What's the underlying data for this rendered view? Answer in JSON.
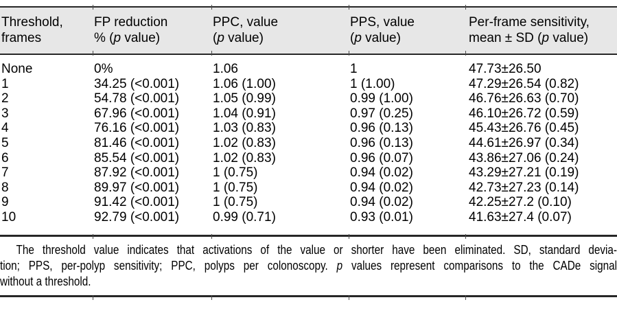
{
  "table": {
    "headers": [
      {
        "line1": "Threshold,",
        "line2_pre": "frames",
        "line2_italic": "",
        "line2_post": ""
      },
      {
        "line1": "FP reduction",
        "line2_pre": "% (",
        "line2_italic": "p",
        "line2_post": " value)"
      },
      {
        "line1": "PPC, value",
        "line2_pre": "(",
        "line2_italic": "p",
        "line2_post": " value)"
      },
      {
        "line1": "PPS, value",
        "line2_pre": "(",
        "line2_italic": "p",
        "line2_post": " value)"
      },
      {
        "line1": "Per-frame sensitivity,",
        "line2_pre": "mean ± SD (",
        "line2_italic": "p",
        "line2_post": " value)"
      }
    ],
    "rows": [
      [
        "None",
        "0%",
        "1.06",
        "1",
        "47.73±26.50"
      ],
      [
        "1",
        "34.25 (<0.001)",
        "1.06 (1.00)",
        "1 (1.00)",
        "47.29±26.54 (0.82)"
      ],
      [
        "2",
        "54.78 (<0.001)",
        "1.05 (0.99)",
        "0.99 (1.00)",
        "46.76±26.63 (0.70)"
      ],
      [
        "3",
        "67.96 (<0.001)",
        "1.04 (0.91)",
        "0.97 (0.25)",
        "46.10±26.72 (0.59)"
      ],
      [
        "4",
        "76.16 (<0.001)",
        "1.03 (0.83)",
        "0.96 (0.13)",
        "45.43±26.76 (0.45)"
      ],
      [
        "5",
        "81.46 (<0.001)",
        "1.02 (0.83)",
        "0.96 (0.13)",
        "44.61±26.97 (0.34)"
      ],
      [
        "6",
        "85.54 (<0.001)",
        "1.02 (0.83)",
        "0.96 (0.07)",
        "43.86±27.06 (0.24)"
      ],
      [
        "7",
        "87.92 (<0.001)",
        "1 (0.75)",
        "0.94 (0.02)",
        "43.29±27.21 (0.19)"
      ],
      [
        "8",
        "89.97 (<0.001)",
        "1 (0.75)",
        "0.94 (0.02)",
        "42.73±27.23 (0.14)"
      ],
      [
        "9",
        "91.42 (<0.001)",
        "1 (0.75)",
        "0.94 (0.02)",
        "42.25±27.2 (0.10)"
      ],
      [
        "10",
        "92.79 (<0.001)",
        "0.99 (0.71)",
        "0.93 (0.01)",
        "41.63±27.4 (0.07)"
      ]
    ]
  },
  "footnote": {
    "lines": [
      {
        "pre": "The threshold value indicates that activations of the value or shorter have been eliminated. SD, standard devia-",
        "italic": "",
        "post": ""
      },
      {
        "pre": "tion; PPS, per-polyp sensitivity; PPC, polyps per colonoscopy. ",
        "italic": "p",
        "post": " values represent comparisons to the CADe signal"
      },
      {
        "pre": "without a threshold.",
        "italic": "",
        "post": ""
      }
    ]
  },
  "colors": {
    "header_background": "#e7e7e7",
    "rule": "#262626",
    "text": "#000000"
  }
}
